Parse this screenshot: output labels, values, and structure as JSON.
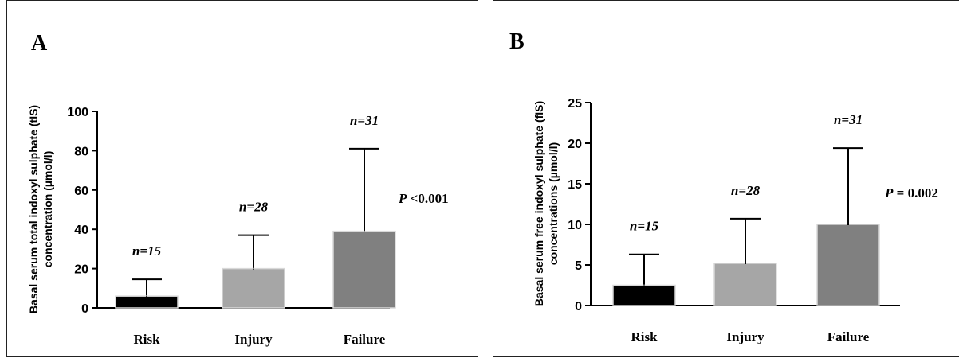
{
  "chart_data": [
    {
      "type": "bar",
      "panel_label": "A",
      "categories": [
        "Risk",
        "Injury",
        "Failure"
      ],
      "values": [
        6,
        20,
        39
      ],
      "error_upper": [
        14.5,
        37,
        81
      ],
      "n_labels": [
        "n=15",
        "n=28",
        "n=31"
      ],
      "ylabel_line1": "Basal serum total indoxyl sulphate (tIS)",
      "ylabel_line2": "concentration (µmol/l)",
      "ylim": [
        0,
        100
      ],
      "yticks": [
        0,
        20,
        40,
        60,
        80,
        100
      ],
      "p_prefix": "P",
      "p_rest": " <0.001",
      "colors": [
        "#000000",
        "#a6a6a6",
        "#808080"
      ]
    },
    {
      "type": "bar",
      "panel_label": "B",
      "categories": [
        "Risk",
        "Injury",
        "Failure"
      ],
      "values": [
        2.5,
        5.2,
        10
      ],
      "error_upper": [
        6.3,
        10.7,
        19.4
      ],
      "n_labels": [
        "n=15",
        "n=28",
        "n=31"
      ],
      "ylabel_line1": "Basal serum free indoxyl sulphate (fIS)",
      "ylabel_line2": "concentrations (µmol/l)",
      "ylim": [
        0,
        25
      ],
      "yticks": [
        0,
        5,
        10,
        15,
        20,
        25
      ],
      "p_prefix": "P",
      "p_rest": " = 0.002",
      "colors": [
        "#000000",
        "#a6a6a6",
        "#808080"
      ]
    }
  ]
}
